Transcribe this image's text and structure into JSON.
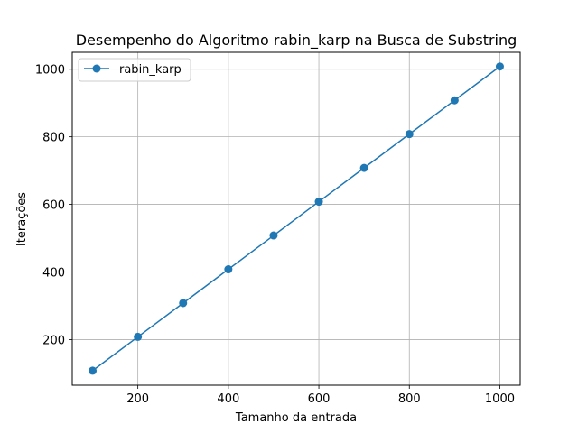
{
  "chart_data": {
    "type": "line",
    "title": "Desempenho do Algoritmo rabin_karp na Busca de Substring",
    "xlabel": "Tamanho da entrada",
    "ylabel": "Iterações",
    "xlim": [
      55,
      1045
    ],
    "ylim": [
      65,
      1050
    ],
    "xticks": [
      200,
      400,
      600,
      800,
      1000
    ],
    "yticks": [
      200,
      400,
      600,
      800,
      1000
    ],
    "grid": true,
    "legend_position": "top-left",
    "series": [
      {
        "name": "rabin_karp",
        "color": "#1f77b4",
        "marker": "circle",
        "x": [
          100,
          200,
          300,
          400,
          500,
          600,
          700,
          800,
          900,
          1000
        ],
        "y": [
          108,
          208,
          308,
          408,
          508,
          608,
          708,
          808,
          908,
          1008
        ]
      }
    ]
  }
}
